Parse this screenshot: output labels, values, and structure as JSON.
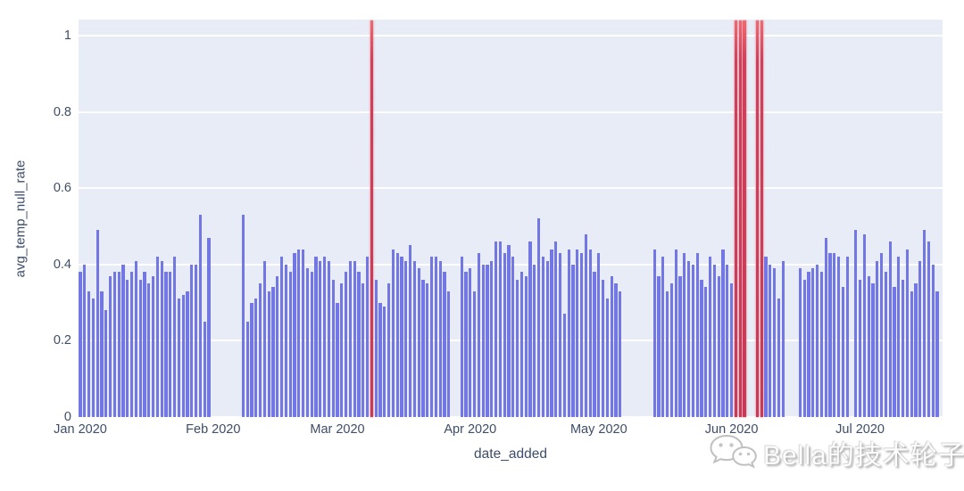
{
  "figure": {
    "watermark_text": "Bella的技术轮子"
  },
  "chart_data": {
    "type": "bar",
    "title": "",
    "xlabel": "date_added",
    "ylabel": "avg_temp_null_rate",
    "x_tick_labels": [
      "Jan 2020",
      "Feb 2020",
      "Mar 2020",
      "Apr 2020",
      "May 2020",
      "Jun 2020",
      "Jul 2020"
    ],
    "x_tick_day_offsets": [
      0,
      31,
      60,
      91,
      121,
      152,
      182
    ],
    "y_ticks": [
      0,
      0.2,
      0.4,
      0.6,
      0.8,
      1
    ],
    "ylim": [
      0,
      1.042
    ],
    "grid": true,
    "legend_position": "none",
    "bar_color": "#7277e4",
    "anomaly_color": "#c73a55",
    "plot_bg": "#e7ecf6",
    "anomaly_value": 1.04,
    "segments": [
      {
        "start_day": 0,
        "values": [
          0.38,
          0.4,
          0.33,
          0.31,
          0.49,
          0.33,
          0.28,
          0.37,
          0.38,
          0.38,
          0.4,
          0.36,
          0.38,
          0.41,
          0.36,
          0.38,
          0.35,
          0.37,
          0.42,
          0.41,
          0.38,
          0.38,
          0.42,
          0.31,
          0.32,
          0.33,
          0.4,
          0.4,
          0.53,
          0.25,
          0.47
        ]
      },
      {
        "start_day": 38,
        "values": [
          0.53,
          0.25,
          0.3,
          0.31,
          0.35,
          0.41,
          0.33,
          0.34,
          0.37,
          0.42,
          0.4,
          0.38,
          0.43,
          0.44,
          0.44,
          0.39,
          0.38,
          0.42,
          0.41,
          0.42,
          0.41,
          0.36,
          0.3,
          0.35,
          0.38,
          0.41,
          0.41,
          0.38,
          0.35,
          0.42,
          1.04,
          0.36,
          0.3,
          0.29,
          0.35,
          0.44,
          0.43,
          0.42,
          0.41,
          0.45,
          0.41,
          0.39,
          0.36,
          0.35,
          0.42,
          0.42,
          0.41,
          0.38,
          0.33
        ]
      },
      {
        "start_day": 89,
        "values": [
          0.42,
          0.38,
          0.39,
          0.33,
          0.43,
          0.4,
          0.4,
          0.41,
          0.46,
          0.46,
          0.43,
          0.45,
          0.42,
          0.36,
          0.38,
          0.37,
          0.46,
          0.4,
          0.52,
          0.42,
          0.41,
          0.44,
          0.46,
          0.43,
          0.27,
          0.44,
          0.4,
          0.44,
          0.43,
          0.48,
          0.44,
          0.38,
          0.43,
          0.36,
          0.31,
          0.37,
          0.35,
          0.33
        ]
      },
      {
        "start_day": 134,
        "values": [
          0.44,
          0.37,
          0.42,
          0.33,
          0.35,
          0.44,
          0.37,
          0.43,
          0.41,
          0.4,
          0.43,
          0.36,
          0.34,
          0.42,
          0.4,
          0.37,
          0.44,
          0.4,
          0.35,
          1.04,
          1.04,
          1.04
        ]
      },
      {
        "start_day": 158,
        "values": [
          1.04,
          1.04,
          0.42,
          0.4,
          0.39,
          0.31,
          0.41
        ]
      },
      {
        "start_day": 168,
        "values": [
          0.39,
          0.36,
          0.38,
          0.39,
          0.4,
          0.38,
          0.47,
          0.43,
          0.43,
          0.42,
          0.34,
          0.42
        ]
      },
      {
        "start_day": 181,
        "values": [
          0.49,
          0.36,
          0.48,
          0.37,
          0.35,
          0.41,
          0.43,
          0.38,
          0.46,
          0.34,
          0.42,
          0.36,
          0.44,
          0.33,
          0.35,
          0.41,
          0.49,
          0.46,
          0.4,
          0.33
        ]
      }
    ]
  }
}
